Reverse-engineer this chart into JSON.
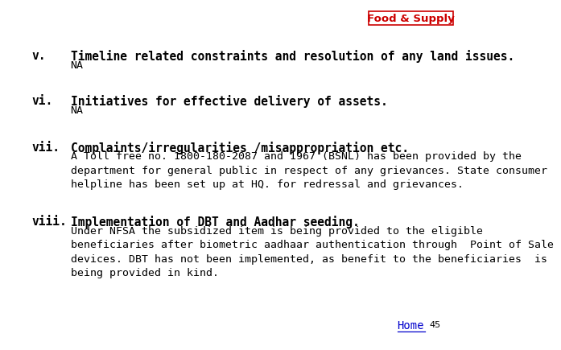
{
  "background_color": "#ffffff",
  "header_box_border": "#cc0000",
  "header_text": "Food & Supply",
  "header_text_color": "#cc0000",
  "sections": [
    {
      "label": "v.",
      "heading": "Timeline related constraints and resolution of any land issues.",
      "body": "NA"
    },
    {
      "label": "vi.",
      "heading": "Initiatives for effective delivery of assets.",
      "body": "NA"
    },
    {
      "label": "vii.",
      "heading": "Complaints/irregularities /misappropriation etc.",
      "body": "A Toll free no. 1800-180-2087 and 1967 (BSNL) has been provided by the\ndepartment for general public in respect of any grievances. State consumer\nhelpline has been set up at HQ. for redressal and grievances."
    },
    {
      "label": "viii.",
      "heading": "Implementation of DBT and Aadhar seeding.",
      "body": "Under NFSA the subsidized item is being provided to the eligible\nbeneficiaries after biometric aadhaar authentication through  Point of Sale\ndevices. DBT has not been implemented, as benefit to the beneficiaries  is\nbeing provided in kind."
    }
  ],
  "footer_text": "Home",
  "footer_color": "#0000cc",
  "page_number": "45",
  "text_color": "#000000",
  "label_color": "#000000",
  "font_size_heading": 10.5,
  "font_size_body": 9.5
}
